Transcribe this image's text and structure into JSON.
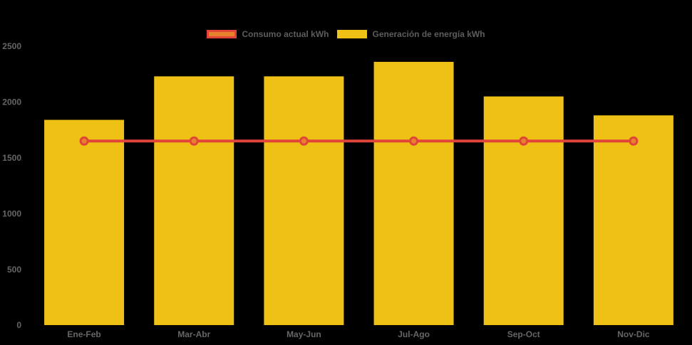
{
  "chart_data": {
    "type": "bar",
    "title": "",
    "categories": [
      "Ene-Feb",
      "Mar-Abr",
      "May-Jun",
      "Jul-Ago",
      "Sep-Oct",
      "Nov-Dic"
    ],
    "series": [
      {
        "name": "Consumo actual kWh",
        "type": "line",
        "values": [
          1650,
          1650,
          1650,
          1650,
          1650,
          1650
        ],
        "line_color": "#E14439",
        "fill_color": "#E8812C"
      },
      {
        "name": "Generación de energía kWh",
        "type": "bar",
        "values": [
          1840,
          2230,
          2230,
          2360,
          2050,
          1880
        ],
        "fill_color": "#EEC114"
      }
    ],
    "ylim": [
      0,
      2500
    ],
    "yticks": [
      0,
      500,
      1000,
      1500,
      2000,
      2500
    ],
    "grid": false,
    "legend_position": "top-center",
    "axis_text_color": "#666666",
    "background_color": "#000000"
  }
}
